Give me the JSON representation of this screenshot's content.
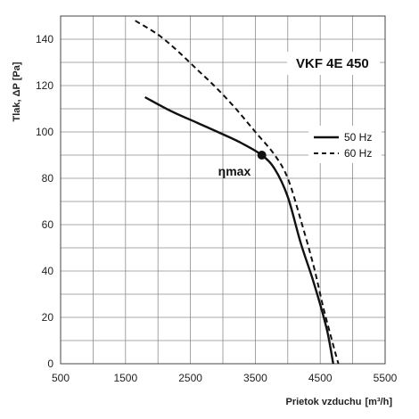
{
  "chart_data": {
    "type": "line",
    "title": "VKF 4E 450",
    "xlabel": "Prietok vzduchu",
    "xlabel_unit": "[m³/h]",
    "ylabel": "Tlak, ΔP [Pa]",
    "xlim": [
      500,
      5500
    ],
    "ylim": [
      0,
      150
    ],
    "x_ticks": [
      500,
      1500,
      2500,
      3500,
      4500,
      5500
    ],
    "y_ticks": [
      0,
      20,
      40,
      60,
      80,
      100,
      120,
      140
    ],
    "x_grid_step": 500,
    "y_grid_step": 10,
    "grid": true,
    "legend_position": "right",
    "series": [
      {
        "name": "50 Hz",
        "style": "solid",
        "color": "#111111",
        "points": [
          [
            1800,
            115
          ],
          [
            2200,
            109
          ],
          [
            2600,
            104
          ],
          [
            3000,
            99
          ],
          [
            3300,
            95
          ],
          [
            3600,
            90
          ],
          [
            3800,
            84
          ],
          [
            4000,
            72
          ],
          [
            4200,
            52
          ],
          [
            4400,
            35
          ],
          [
            4600,
            15
          ],
          [
            4700,
            0
          ]
        ]
      },
      {
        "name": "60 Hz",
        "style": "dashed",
        "color": "#111111",
        "points": [
          [
            1650,
            148
          ],
          [
            2000,
            142
          ],
          [
            2300,
            135
          ],
          [
            2600,
            127
          ],
          [
            2900,
            119
          ],
          [
            3200,
            110
          ],
          [
            3500,
            100
          ],
          [
            3800,
            90
          ],
          [
            4000,
            80
          ],
          [
            4200,
            62
          ],
          [
            4400,
            42
          ],
          [
            4550,
            24
          ],
          [
            4700,
            8
          ],
          [
            4780,
            0
          ]
        ]
      }
    ],
    "annotations": [
      {
        "label": "ηmax",
        "x": 3600,
        "y": 90
      }
    ]
  }
}
